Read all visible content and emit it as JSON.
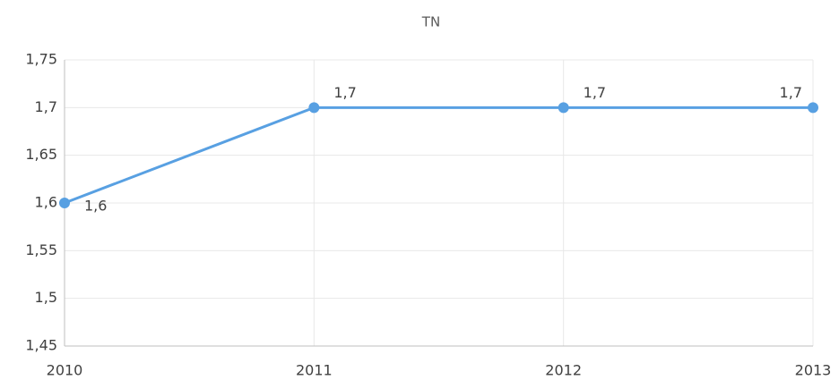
{
  "chart_data": {
    "type": "line",
    "title": "TN",
    "x": [
      2010,
      2011,
      2012,
      2013
    ],
    "series": [
      {
        "name": "TN",
        "color": "#58a0e2",
        "values": [
          1.6,
          1.7,
          1.7,
          1.7
        ],
        "value_labels": [
          "1,6",
          "1,7",
          "1,7",
          "1,7"
        ]
      }
    ],
    "xlim": [
      2010,
      2013
    ],
    "xticks": [
      2010,
      2011,
      2012,
      2013
    ],
    "ylim": [
      1.45,
      1.75
    ],
    "yticks": [
      {
        "value": 1.45,
        "label": "1,45"
      },
      {
        "value": 1.5,
        "label": "1,5"
      },
      {
        "value": 1.55,
        "label": "1,55"
      },
      {
        "value": 1.6,
        "label": "1,6"
      },
      {
        "value": 1.65,
        "label": "1,65"
      },
      {
        "value": 1.7,
        "label": "1,7"
      },
      {
        "value": 1.75,
        "label": "1,75"
      }
    ],
    "grid": true,
    "legend": false
  }
}
